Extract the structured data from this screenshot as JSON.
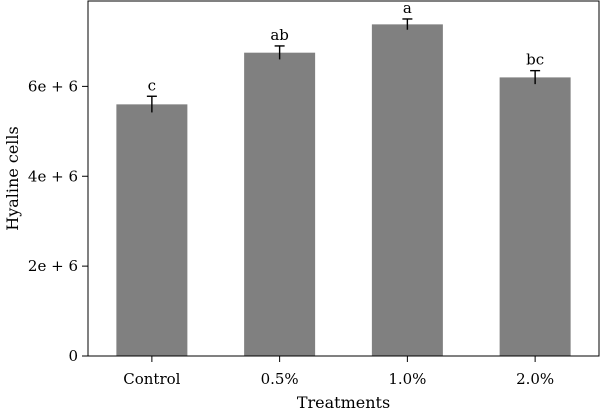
{
  "chart_data": {
    "type": "bar",
    "xlabel": "Treatments",
    "ylabel": "Hyaline cells",
    "categories": [
      "Control",
      "0.5%",
      "1.0%",
      "2.0%"
    ],
    "values": [
      5600000,
      6750000,
      7380000,
      6200000
    ],
    "errors": [
      180000,
      150000,
      120000,
      150000
    ],
    "significance_letters": [
      "c",
      "ab",
      "a",
      "bc"
    ],
    "ylim": [
      0,
      7900000
    ],
    "yticks": [
      0,
      2000000,
      4000000,
      6000000
    ],
    "ytick_labels": [
      "0",
      "2e + 6",
      "4e + 6",
      "6e + 6"
    ],
    "grid": false,
    "colors": {
      "bar": "#808080",
      "axis": "#000000"
    }
  }
}
